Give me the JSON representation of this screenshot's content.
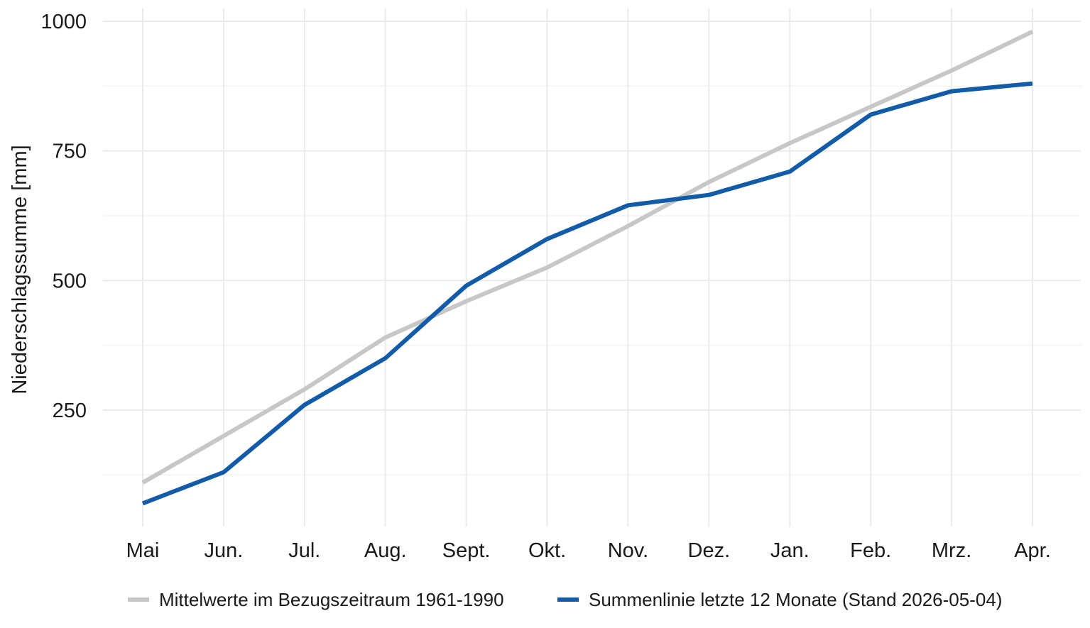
{
  "chart_data": {
    "type": "line",
    "title": "",
    "xlabel": "",
    "ylabel": "Niederschlagssumme [mm]",
    "categories": [
      "Mai",
      "Jun.",
      "Jul.",
      "Aug.",
      "Sept.",
      "Okt.",
      "Nov.",
      "Dez.",
      "Jan.",
      "Feb.",
      "Mrz.",
      "Apr."
    ],
    "ylim": [
      -50,
      1025
    ],
    "yticks": [
      250,
      500,
      750,
      1000
    ],
    "grid": true,
    "legend_position": "bottom",
    "series": [
      {
        "name": "Mittelwerte im Bezugszeitraum 1961-1990",
        "color": "#c6c7c7",
        "values": [
          110,
          200,
          290,
          390,
          460,
          525,
          605,
          690,
          765,
          835,
          905,
          980
        ]
      },
      {
        "name": "Summenlinie letzte 12 Monate (Stand 2026-05-04)",
        "color": "#125ba8",
        "values": [
          70,
          130,
          260,
          350,
          490,
          580,
          645,
          665,
          710,
          820,
          865,
          880
        ]
      }
    ]
  }
}
